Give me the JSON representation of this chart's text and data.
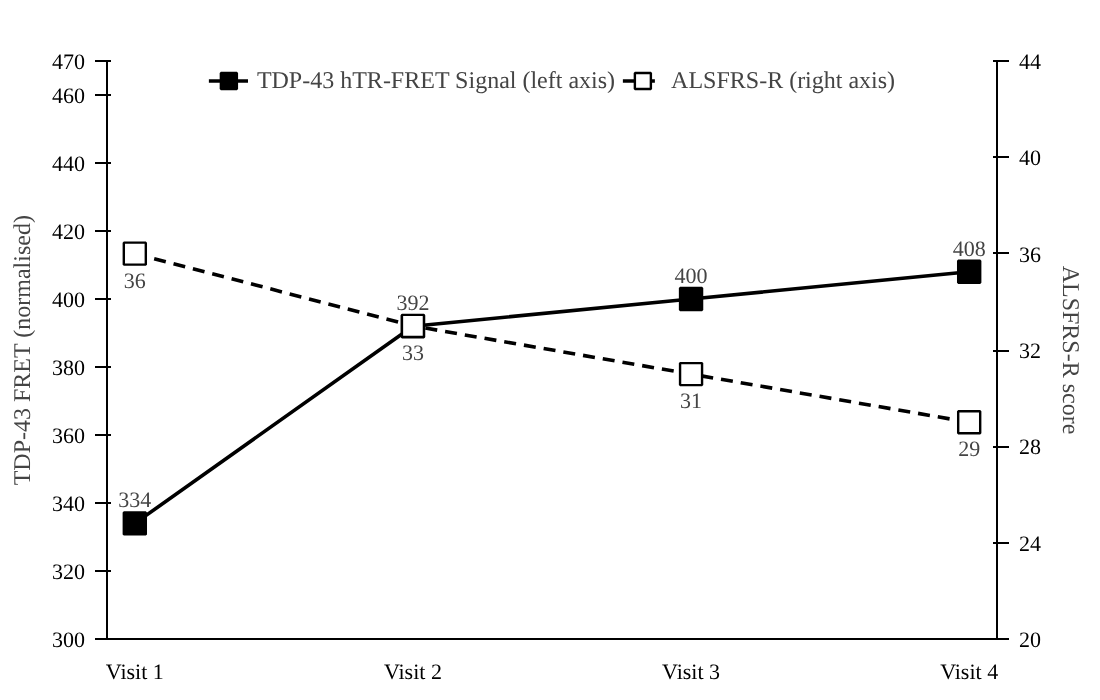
{
  "chart_data": {
    "type": "line",
    "categories": [
      "Visit 1",
      "Visit 2",
      "Visit 3",
      "Visit 4"
    ],
    "ylabel": "TDP-43 FRET (normalised)",
    "y2label": "ALSFRS-R score",
    "series": [
      {
        "name": "TDP-43 hTR-FRET Signal (left axis)",
        "color": "#000000",
        "values": [
          334,
          392,
          400,
          408
        ],
        "line_style": "solid"
      },
      {
        "name": "ALSFRS-R (right axis)",
        "color": "#000000",
        "values": [
          36,
          33,
          31,
          29
        ],
        "axis": "y2",
        "line_style": "dashed"
      }
    ],
    "ylim": [
      300,
      470
    ],
    "yticks": [
      300,
      320,
      340,
      360,
      380,
      400,
      420,
      440,
      460,
      470
    ],
    "y2lim": [
      20,
      44
    ],
    "y2ticks": [
      20,
      24,
      28,
      32,
      36,
      40,
      44
    ],
    "marker": "square",
    "data_labels": true,
    "legend": "top",
    "grid": false
  }
}
